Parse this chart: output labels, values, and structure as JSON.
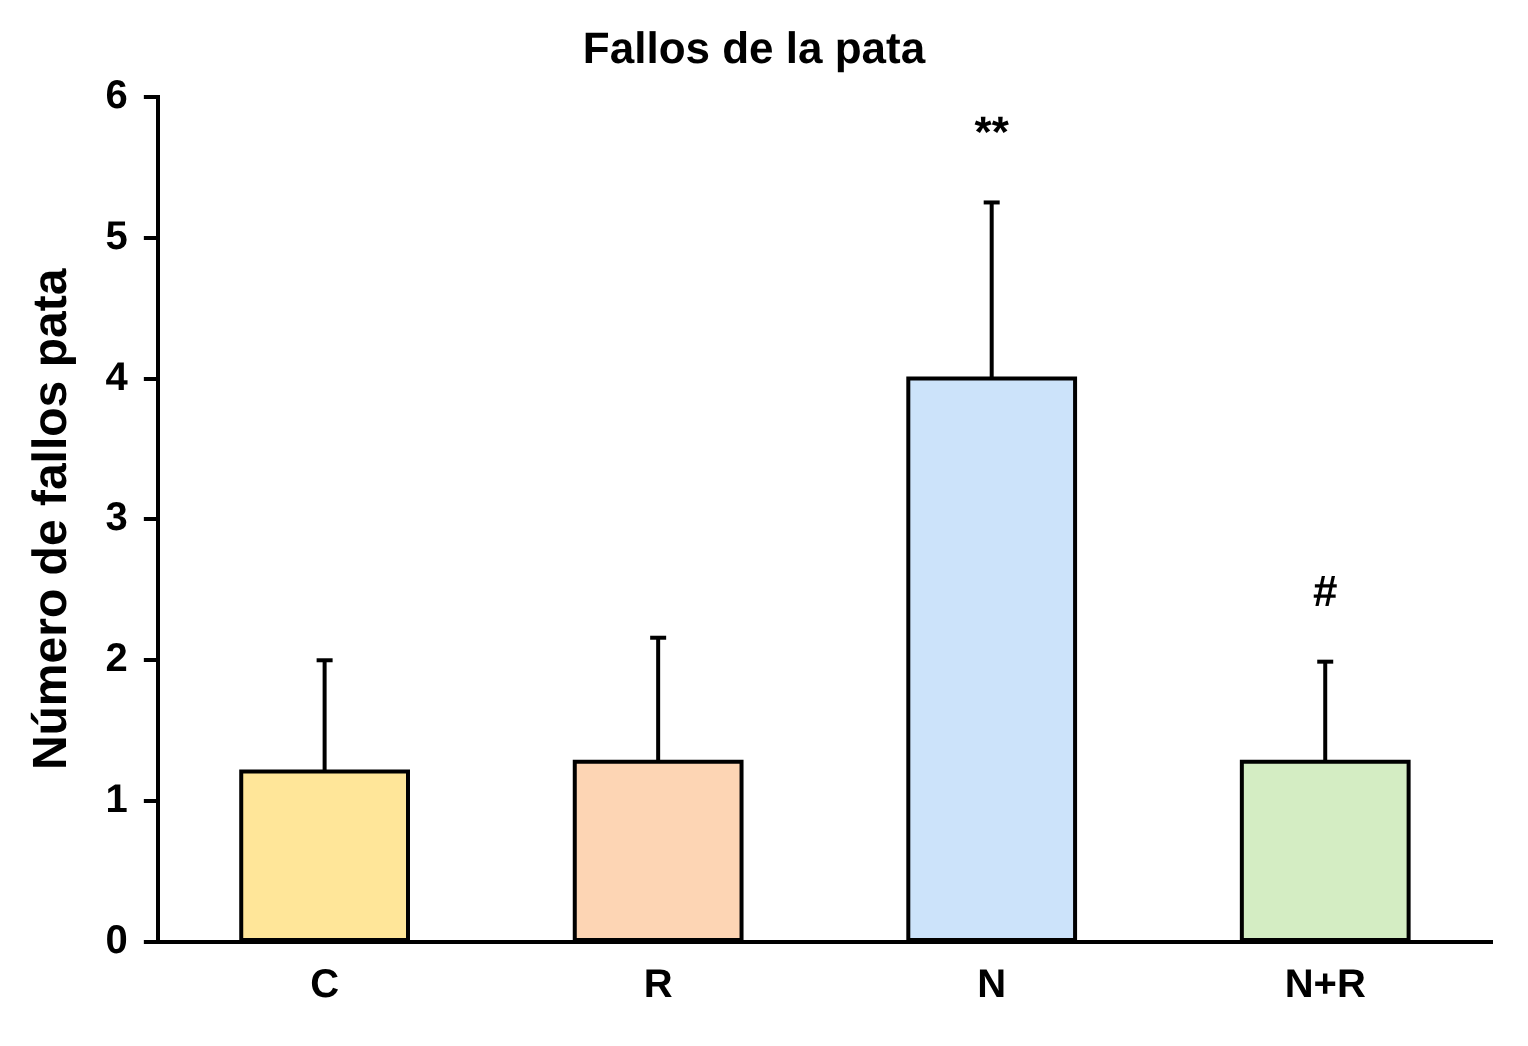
{
  "chart_data": {
    "type": "bar",
    "title": "Fallos de la pata",
    "ylabel": "Número de fallos pata",
    "categories": [
      "C",
      "R",
      "N",
      "N+R"
    ],
    "values": [
      1.21,
      1.28,
      4.0,
      1.28
    ],
    "errors": [
      [
        1.21,
        2.0
      ],
      [
        1.28,
        2.16
      ],
      [
        4.0,
        5.25
      ],
      [
        1.28,
        1.99
      ]
    ],
    "colors": [
      "#ffe699",
      "#fdd5b4",
      "#cce3fa",
      "#d4edc3"
    ],
    "ylim": [
      0,
      6
    ],
    "yticks": [
      0,
      1,
      2,
      3,
      4,
      5,
      6
    ],
    "grid": false,
    "legend": false,
    "annotations": [
      "**",
      "#"
    ]
  }
}
